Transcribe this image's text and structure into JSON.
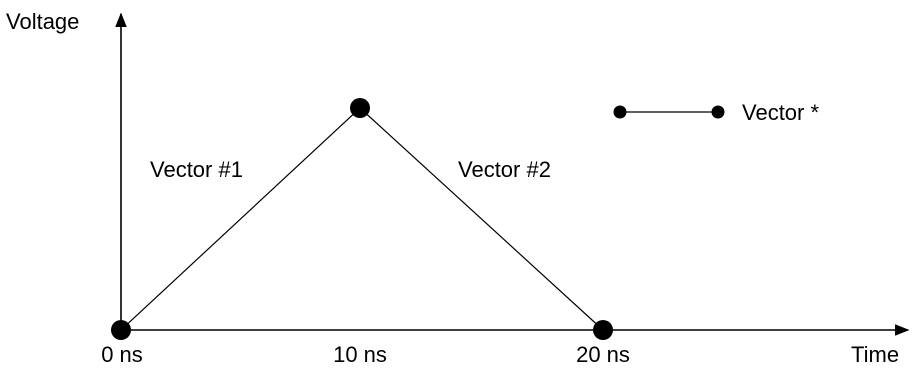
{
  "diagram": {
    "y_axis_label": "Voltage",
    "x_axis_label": "Time",
    "ticks": [
      "0 ns",
      "10 ns",
      "20 ns"
    ],
    "vectors": [
      {
        "label": "Vector #1"
      },
      {
        "label": "Vector #2"
      }
    ],
    "legend": {
      "label": "Vector *"
    },
    "colors": {
      "ink": "#000000",
      "background": "#ffffff"
    }
  }
}
